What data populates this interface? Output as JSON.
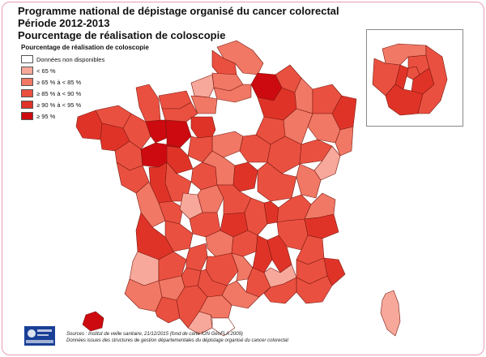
{
  "title": {
    "line1": "Programme national de dépistage organisé du cancer colorectal",
    "line2": "Période 2012-2013",
    "line3": "Pourcentage de réalisation de coloscopie"
  },
  "legend": {
    "title": "Pourcentage de réalisation de coloscopie",
    "items": [
      {
        "label": "Données non disponibles",
        "color": "#ffffff"
      },
      {
        "label": "< 65 %",
        "color": "#f7a89a"
      },
      {
        "label": "≥ 65 % à < 85 %",
        "color": "#f07865"
      },
      {
        "label": "≥ 85 % à < 90 %",
        "color": "#ea5040"
      },
      {
        "label": "≥ 90 % à < 95 %",
        "color": "#e03328"
      },
      {
        "label": "≥ 95 %",
        "color": "#cc0a10"
      }
    ]
  },
  "sources": {
    "line1": "Sources : Institut de veille sanitaire, 21/12/2015 (fond de carte IGN GéoFLA 2009)",
    "line2": "Données issues des structures de gestion départementales du dépistage organisé du cancer colorectal"
  },
  "colors": {
    "frame": "#e89ab8",
    "border": "#7a1a10",
    "base": "#e03328"
  },
  "map": {
    "regions": [
      {
        "name": "nord",
        "class": 2
      },
      {
        "name": "pas-de-calais",
        "class": 3
      },
      {
        "name": "somme",
        "class": 2
      },
      {
        "name": "aisne",
        "class": 5
      },
      {
        "name": "ardennes",
        "class": 3
      },
      {
        "name": "seine-maritime",
        "class": 1
      },
      {
        "name": "oise",
        "class": 2
      },
      {
        "name": "manche",
        "class": 3
      },
      {
        "name": "calvados",
        "class": 3
      },
      {
        "name": "orne",
        "class": 3
      },
      {
        "name": "eure",
        "class": 2
      },
      {
        "name": "finistere",
        "class": 4
      },
      {
        "name": "cotes-d-armor",
        "class": 3
      },
      {
        "name": "morbihan",
        "class": 4
      },
      {
        "name": "ille-et-vilaine",
        "class": 3
      },
      {
        "name": "mayenne",
        "class": 5
      },
      {
        "name": "sarthe",
        "class": 5
      },
      {
        "name": "loire-atlantique",
        "class": 3
      },
      {
        "name": "maine-et-loire",
        "class": 5
      },
      {
        "name": "vendee",
        "class": 3
      },
      {
        "name": "marne",
        "class": 4
      },
      {
        "name": "meuse",
        "class": 2
      },
      {
        "name": "moselle",
        "class": 3
      },
      {
        "name": "bas-rhin",
        "class": 4
      },
      {
        "name": "haut-rhin",
        "class": 2
      },
      {
        "name": "vosges",
        "class": 2
      },
      {
        "name": "aube",
        "class": 3
      },
      {
        "name": "haute-marne",
        "class": 2
      },
      {
        "name": "yonne",
        "class": 3
      },
      {
        "name": "loiret",
        "class": 2
      },
      {
        "name": "eure-et-loir",
        "class": 4
      },
      {
        "name": "loir-et-cher",
        "class": 3
      },
      {
        "name": "cote-d-or",
        "class": 3
      },
      {
        "name": "haute-saone",
        "class": 3
      },
      {
        "name": "doubs",
        "class": 1
      },
      {
        "name": "jura",
        "class": 2
      },
      {
        "name": "indre-et-loire",
        "class": 4
      },
      {
        "name": "indre",
        "class": 3
      },
      {
        "name": "cher",
        "class": 2
      },
      {
        "name": "nievre",
        "class": 4
      },
      {
        "name": "saone-et-loire",
        "class": 3
      },
      {
        "name": "vienne",
        "class": 3
      },
      {
        "name": "deux-sevres",
        "class": 4
      },
      {
        "name": "charente-maritime",
        "class": 2
      },
      {
        "name": "charente",
        "class": 3
      },
      {
        "name": "haute-vienne",
        "class": 1
      },
      {
        "name": "creuse",
        "class": 2
      },
      {
        "name": "allier",
        "class": 3
      },
      {
        "name": "puy-de-dome",
        "class": 4
      },
      {
        "name": "loire",
        "class": 3
      },
      {
        "name": "rhone",
        "class": 4
      },
      {
        "name": "ain",
        "class": 3
      },
      {
        "name": "haute-savoie",
        "class": 2
      },
      {
        "name": "savoie",
        "class": 4
      },
      {
        "name": "isere",
        "class": 3
      },
      {
        "name": "correze",
        "class": 3
      },
      {
        "name": "cantal",
        "class": 2
      },
      {
        "name": "haute-loire",
        "class": 3
      },
      {
        "name": "ardeche",
        "class": 4
      },
      {
        "name": "drome",
        "class": 4
      },
      {
        "name": "hautes-alpes",
        "class": 3
      },
      {
        "name": "dordogne",
        "class": 3
      },
      {
        "name": "gironde",
        "class": 4
      },
      {
        "name": "landes",
        "class": 1
      },
      {
        "name": "lot-et-garonne",
        "class": 3
      },
      {
        "name": "lot",
        "class": 3
      },
      {
        "name": "aveyron",
        "class": 3
      },
      {
        "name": "lozere",
        "class": 2
      },
      {
        "name": "gard",
        "class": 3
      },
      {
        "name": "vaucluse",
        "class": 1
      },
      {
        "name": "alpes-de-haute-provence",
        "class": 3
      },
      {
        "name": "alpes-maritimes",
        "class": 4
      },
      {
        "name": "var",
        "class": 3
      },
      {
        "name": "bouches-du-rhone",
        "class": 3
      },
      {
        "name": "herault",
        "class": 2
      },
      {
        "name": "tarn",
        "class": 3
      },
      {
        "name": "tarn-et-garonne",
        "class": 3
      },
      {
        "name": "gers",
        "class": 2
      },
      {
        "name": "haute-garonne",
        "class": 3
      },
      {
        "name": "pyrenees-atlantiques",
        "class": 2
      },
      {
        "name": "hautes-pyrenees",
        "class": 3
      },
      {
        "name": "ariege",
        "class": 1
      },
      {
        "name": "aude",
        "class": 2
      },
      {
        "name": "pyrenees-orientales",
        "class": 0
      },
      {
        "name": "corse",
        "class": 1
      },
      {
        "name": "reunion",
        "class": 5
      },
      {
        "name": "paris",
        "class": 3
      },
      {
        "name": "hauts-de-seine",
        "class": 4
      },
      {
        "name": "seine-saint-denis",
        "class": 3
      },
      {
        "name": "val-de-marne",
        "class": 4
      },
      {
        "name": "val-d-oise",
        "class": 2
      },
      {
        "name": "yvelines",
        "class": 3
      },
      {
        "name": "essonne",
        "class": 4
      },
      {
        "name": "seine-et-marne",
        "class": 3
      }
    ]
  }
}
